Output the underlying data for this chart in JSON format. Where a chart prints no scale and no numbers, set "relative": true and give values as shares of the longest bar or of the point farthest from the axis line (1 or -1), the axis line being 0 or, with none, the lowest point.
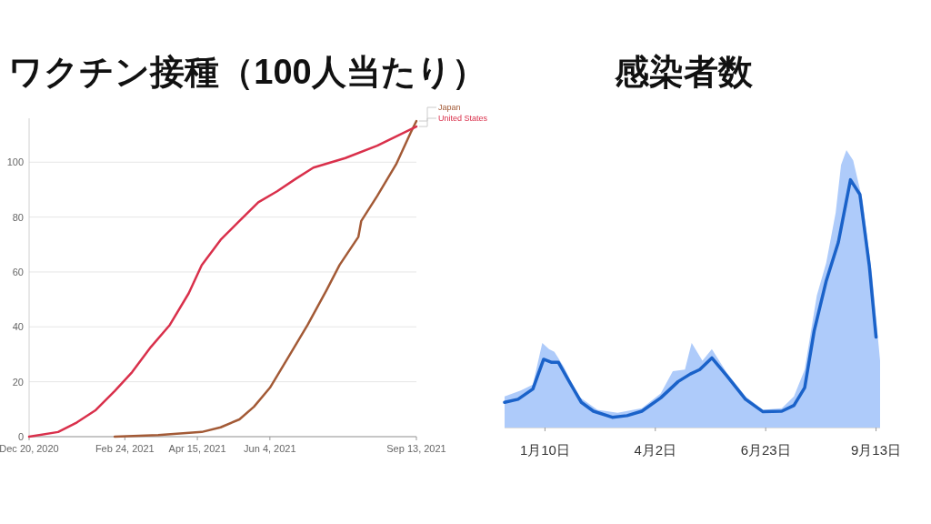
{
  "chart_data": [
    {
      "type": "line",
      "title": "ワクチン接種（100人当たり）",
      "xlim": [
        "2020-12-20",
        "2021-09-13"
      ],
      "xticks": [
        {
          "value": "2020-12-20",
          "label": "Dec 20, 2020"
        },
        {
          "value": "2021-02-24",
          "label": "Feb 24, 2021"
        },
        {
          "value": "2021-04-15",
          "label": "Apr 15, 2021"
        },
        {
          "value": "2021-06-04",
          "label": "Jun 4, 2021"
        },
        {
          "value": "2021-09-13",
          "label": "Sep 13, 2021"
        }
      ],
      "ylim": [
        0,
        116
      ],
      "yticks": [
        0,
        20,
        40,
        60,
        80,
        100
      ],
      "grid": "y",
      "series": [
        {
          "name": "Japan",
          "color": "#a35a36",
          "x": [
            "2021-02-17",
            "2021-03-19",
            "2021-04-18",
            "2021-05-01",
            "2021-05-14",
            "2021-05-24",
            "2021-06-04",
            "2021-06-17",
            "2021-06-30",
            "2021-07-13",
            "2021-07-22",
            "2021-08-04",
            "2021-08-06",
            "2021-08-17",
            "2021-08-30",
            "2021-09-09",
            "2021-09-13"
          ],
          "values": [
            0,
            0.6,
            1.7,
            3.4,
            6.3,
            10.9,
            17.8,
            29.2,
            40.7,
            53.3,
            62.5,
            72.8,
            78.6,
            87.7,
            99.2,
            110.7,
            115
          ]
        },
        {
          "name": "United States",
          "color": "#d9304b",
          "x": [
            "2020-12-20",
            "2021-01-09",
            "2021-01-22",
            "2021-02-04",
            "2021-02-17",
            "2021-03-01",
            "2021-03-14",
            "2021-03-27",
            "2021-04-09",
            "2021-04-18",
            "2021-05-01",
            "2021-05-14",
            "2021-05-27",
            "2021-06-09",
            "2021-06-22",
            "2021-07-04",
            "2021-07-26",
            "2021-08-17",
            "2021-09-13"
          ],
          "values": [
            0,
            1.7,
            5.2,
            9.7,
            16.6,
            23.5,
            32.7,
            40.7,
            52.2,
            62.5,
            71.7,
            78.6,
            85.4,
            89.4,
            94,
            98,
            101.5,
            106,
            113
          ]
        }
      ]
    },
    {
      "type": "area",
      "title": "感染者数",
      "relative": true,
      "xlim": [
        "2020-12-11",
        "2021-09-16"
      ],
      "xticks": [
        {
          "value": "2021-01-10",
          "label": "1月10日"
        },
        {
          "value": "2021-04-02",
          "label": "4月2日"
        },
        {
          "value": "2021-06-23",
          "label": "6月23日"
        },
        {
          "value": "2021-09-13",
          "label": "9月13日"
        }
      ],
      "series": [
        {
          "type": "area",
          "color": "#aecbfa",
          "x": [
            "2020-12-11",
            "2020-12-23",
            "2021-01-01",
            "2021-01-08",
            "2021-01-13",
            "2021-01-17",
            "2021-01-24",
            "2021-02-04",
            "2021-02-18",
            "2021-03-05",
            "2021-03-23",
            "2021-04-06",
            "2021-04-15",
            "2021-04-24",
            "2021-04-29",
            "2021-05-07",
            "2021-05-14",
            "2021-05-25",
            "2021-06-08",
            "2021-06-21",
            "2021-07-05",
            "2021-07-14",
            "2021-07-22",
            "2021-07-31",
            "2021-08-07",
            "2021-08-14",
            "2021-08-18",
            "2021-08-22",
            "2021-08-27",
            "2021-09-03",
            "2021-09-10",
            "2021-09-16"
          ],
          "values": [
            0.112,
            0.134,
            0.155,
            0.305,
            0.283,
            0.273,
            0.219,
            0.112,
            0.064,
            0.053,
            0.07,
            0.123,
            0.203,
            0.209,
            0.305,
            0.241,
            0.283,
            0.198,
            0.112,
            0.064,
            0.07,
            0.112,
            0.209,
            0.476,
            0.594,
            0.775,
            0.947,
            1,
            0.963,
            0.818,
            0.551,
            0.241
          ]
        },
        {
          "type": "line",
          "color": "#1a62c9",
          "x": [
            "2020-12-11",
            "2020-12-21",
            "2021-01-01",
            "2021-01-09",
            "2021-01-15",
            "2021-01-20",
            "2021-01-28",
            "2021-02-06",
            "2021-02-15",
            "2021-03-01",
            "2021-03-12",
            "2021-03-23",
            "2021-04-06",
            "2021-04-19",
            "2021-04-28",
            "2021-05-05",
            "2021-05-14",
            "2021-05-25",
            "2021-06-08",
            "2021-06-21",
            "2021-07-05",
            "2021-07-14",
            "2021-07-22",
            "2021-07-29",
            "2021-08-07",
            "2021-08-16",
            "2021-08-25",
            "2021-09-01",
            "2021-09-08",
            "2021-09-13"
          ],
          "values": [
            0.091,
            0.102,
            0.139,
            0.246,
            0.235,
            0.235,
            0.166,
            0.091,
            0.059,
            0.037,
            0.043,
            0.059,
            0.107,
            0.166,
            0.193,
            0.209,
            0.251,
            0.187,
            0.102,
            0.057,
            0.059,
            0.08,
            0.144,
            0.348,
            0.529,
            0.668,
            0.893,
            0.84,
            0.583,
            0.326
          ]
        }
      ]
    }
  ]
}
